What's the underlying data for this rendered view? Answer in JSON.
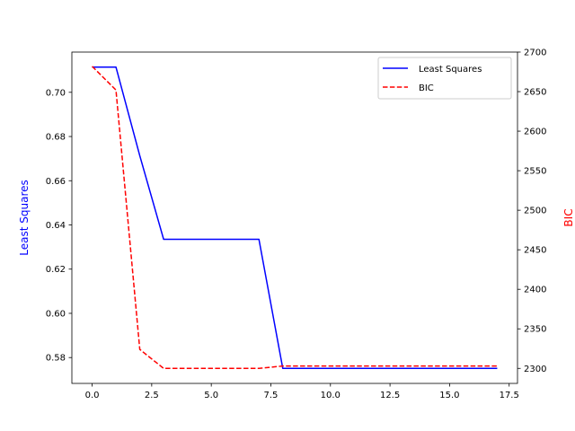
{
  "chart_data": {
    "type": "line",
    "title": "",
    "xlabel": "",
    "xlim": [
      -0.85,
      17.85
    ],
    "xticks": [
      0.0,
      2.5,
      5.0,
      7.5,
      10.0,
      12.5,
      15.0,
      17.5
    ],
    "xtick_labels": [
      "0.0",
      "2.5",
      "5.0",
      "7.5",
      "10.0",
      "12.5",
      "15.0",
      "17.5"
    ],
    "y_left": {
      "label": "Least Squares",
      "color": "#0000ff",
      "ylim": [
        0.5683,
        0.7182
      ],
      "ticks": [
        0.58,
        0.6,
        0.62,
        0.64,
        0.66,
        0.68,
        0.7
      ],
      "tick_labels": [
        "0.58",
        "0.60",
        "0.62",
        "0.64",
        "0.66",
        "0.68",
        "0.70"
      ]
    },
    "y_right": {
      "label": "BIC",
      "color": "#ff0000",
      "ylim": [
        2281,
        2700
      ],
      "ticks": [
        2300,
        2350,
        2400,
        2450,
        2500,
        2550,
        2600,
        2650,
        2700
      ],
      "tick_labels": [
        "2300",
        "2350",
        "2400",
        "2450",
        "2500",
        "2550",
        "2600",
        "2650",
        "2700"
      ]
    },
    "x": [
      0,
      1,
      2,
      3,
      4,
      5,
      6,
      7,
      8,
      9,
      10,
      11,
      12,
      13,
      14,
      15,
      16,
      17
    ],
    "series": [
      {
        "name": "Least Squares",
        "axis": "left",
        "color": "#0000ff",
        "style": "solid",
        "values": [
          0.7114,
          0.7114,
          0.6713,
          0.6335,
          0.6335,
          0.6335,
          0.6335,
          0.6335,
          0.5751,
          0.5751,
          0.5751,
          0.5751,
          0.5751,
          0.5751,
          0.5751,
          0.5751,
          0.5751,
          0.5751
        ]
      },
      {
        "name": "BIC",
        "axis": "right",
        "color": "#ff0000",
        "style": "dashed",
        "values": [
          2682,
          2652,
          2324,
          2300,
          2300,
          2300,
          2300,
          2300,
          2303,
          2303,
          2303,
          2303,
          2303,
          2303,
          2303,
          2303,
          2303,
          2303
        ]
      }
    ],
    "legend": {
      "placement": "top-right",
      "entries": [
        "Least Squares",
        "BIC"
      ]
    }
  }
}
